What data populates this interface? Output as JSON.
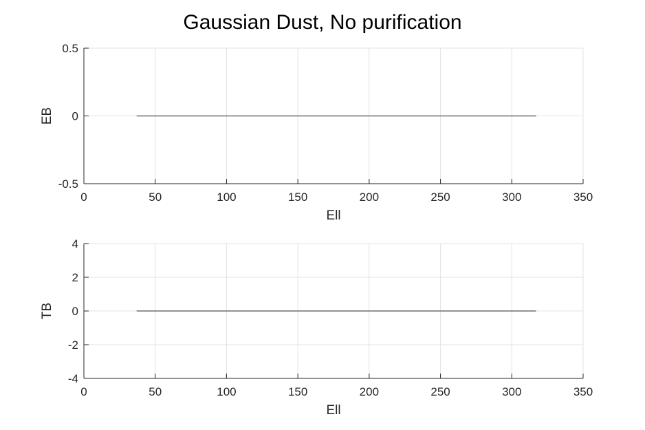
{
  "figure": {
    "title": "Gaussian Dust, No purification"
  },
  "colors": {
    "line": "#6e6e6e",
    "grid": "#e3e3e3",
    "axis": "#262626",
    "background": "#ffffff"
  },
  "chart_data": [
    {
      "type": "line",
      "title": "",
      "xlabel": "Ell",
      "ylabel": "EB",
      "xlim": [
        0,
        350
      ],
      "ylim": [
        -0.5,
        0.5
      ],
      "xticks": [
        0,
        50,
        100,
        150,
        200,
        250,
        300,
        350
      ],
      "yticks": [
        -0.5,
        0,
        0.5
      ],
      "ytick_labels": [
        "-0.5",
        "0",
        "0.5"
      ],
      "grid": true,
      "legend": "none",
      "series": [
        {
          "x": [
            37,
            317
          ],
          "y": [
            0,
            0
          ]
        }
      ]
    },
    {
      "type": "line",
      "title": "",
      "xlabel": "Ell",
      "ylabel": "TB",
      "xlim": [
        0,
        350
      ],
      "ylim": [
        -4,
        4
      ],
      "xticks": [
        0,
        50,
        100,
        150,
        200,
        250,
        300,
        350
      ],
      "yticks": [
        -4,
        -2,
        0,
        2,
        4
      ],
      "ytick_labels": [
        "-4",
        "-2",
        "0",
        "2",
        "4"
      ],
      "grid": true,
      "legend": "none",
      "series": [
        {
          "x": [
            37,
            317
          ],
          "y": [
            0,
            0
          ]
        }
      ]
    }
  ]
}
